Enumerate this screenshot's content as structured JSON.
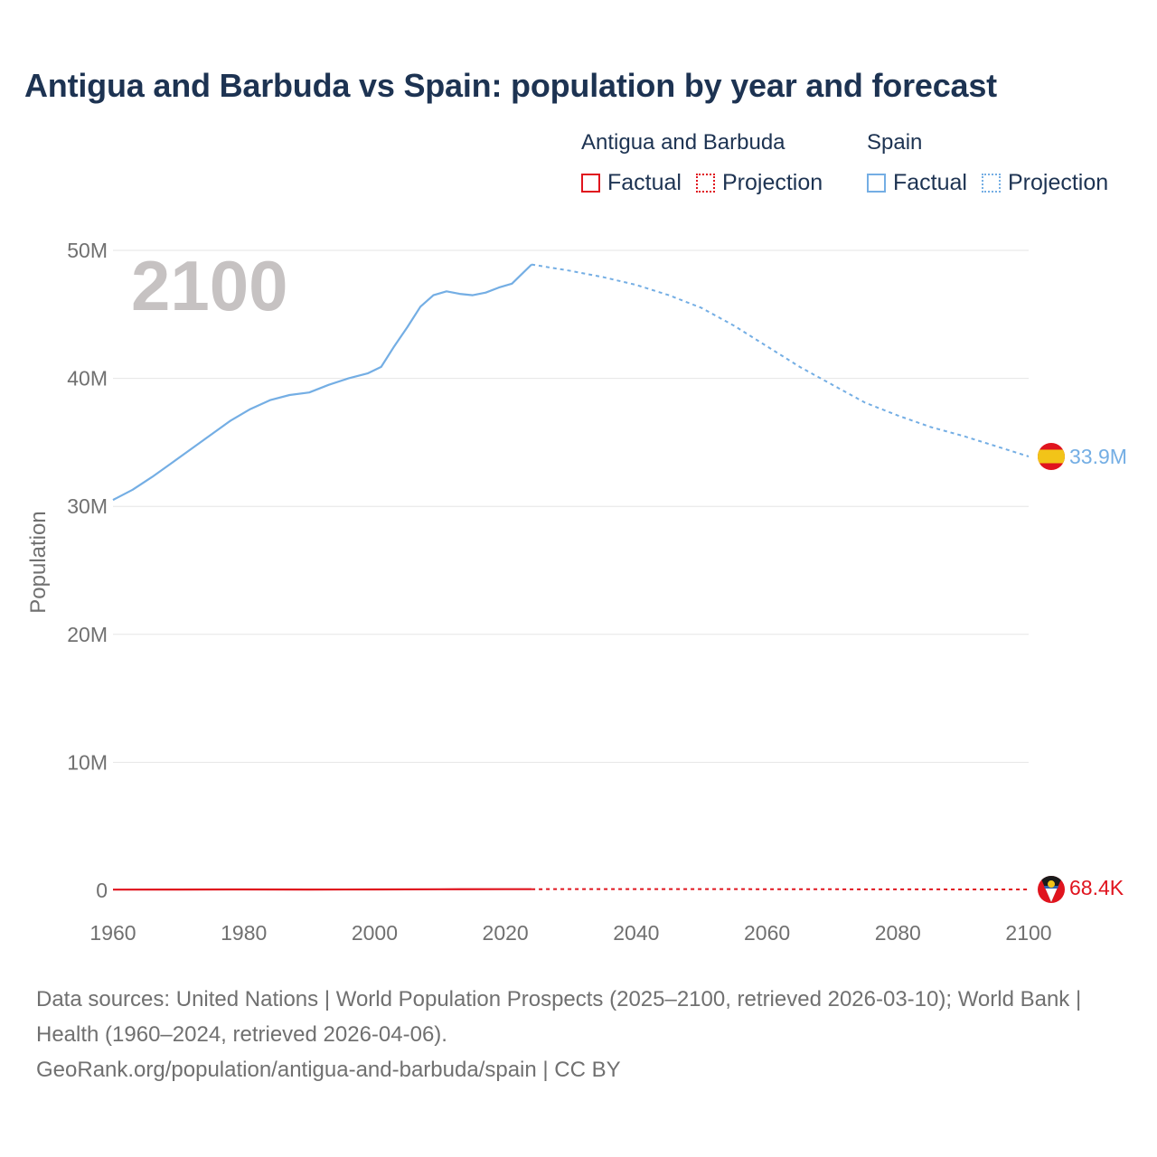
{
  "title": "Antigua and Barbuda vs Spain: population by year and forecast",
  "legend": {
    "groups": [
      {
        "name": "Antigua and Barbuda",
        "color": "#e0141e",
        "factual_label": "Factual",
        "projection_label": "Projection"
      },
      {
        "name": "Spain",
        "color": "#74aee4",
        "factual_label": "Factual",
        "projection_label": "Projection"
      }
    ]
  },
  "year_watermark": "2100",
  "footer": {
    "sources": "Data sources: United Nations | World Population Prospects (2025–2100, retrieved 2026-03-10); World Bank | Health (1960–2024, retrieved 2026-04-06).",
    "credit": "GeoRank.org/population/antigua-and-barbuda/spain | CC BY"
  },
  "chart_data": {
    "type": "line",
    "title": "Antigua and Barbuda vs Spain: population by year and forecast",
    "xlabel": "",
    "ylabel": "Population",
    "xlim": [
      1960,
      2100
    ],
    "ylim": [
      0,
      50000000
    ],
    "grid": true,
    "x_ticks": [
      1960,
      1980,
      2000,
      2020,
      2040,
      2060,
      2080,
      2100
    ],
    "x_tick_labels": [
      "1960",
      "1980",
      "2000",
      "2020",
      "2040",
      "2060",
      "2080",
      "2100"
    ],
    "y_ticks": [
      0,
      10000000,
      20000000,
      30000000,
      40000000,
      50000000
    ],
    "y_tick_labels": [
      "0",
      "10M",
      "20M",
      "30M",
      "40M",
      "50M"
    ],
    "projection_start_year": 2024,
    "series": [
      {
        "name": "Spain",
        "color": "#74aee4",
        "end_label": "33.9M",
        "flag": "spain-flag-icon",
        "factual": {
          "x": [
            1960,
            1963,
            1966,
            1969,
            1972,
            1975,
            1978,
            1981,
            1984,
            1987,
            1990,
            1993,
            1996,
            1999,
            2001,
            2003,
            2005,
            2007,
            2009,
            2011,
            2013,
            2015,
            2017,
            2019,
            2021,
            2024
          ],
          "y": [
            30500000,
            31300000,
            32300000,
            33400000,
            34500000,
            35600000,
            36700000,
            37600000,
            38300000,
            38700000,
            38900000,
            39500000,
            40000000,
            40400000,
            40900000,
            42500000,
            44000000,
            45600000,
            46500000,
            46800000,
            46600000,
            46500000,
            46700000,
            47100000,
            47400000,
            48900000
          ]
        },
        "projection": {
          "x": [
            2024,
            2030,
            2035,
            2040,
            2045,
            2050,
            2055,
            2060,
            2065,
            2070,
            2075,
            2080,
            2085,
            2090,
            2095,
            2100
          ],
          "y": [
            48900000,
            48400000,
            47900000,
            47300000,
            46500000,
            45500000,
            44100000,
            42500000,
            40900000,
            39500000,
            38100000,
            37100000,
            36200000,
            35500000,
            34700000,
            33900000
          ]
        }
      },
      {
        "name": "Antigua and Barbuda",
        "color": "#e0141e",
        "end_label": "68.4K",
        "flag": "antigua-flag-icon",
        "factual": {
          "x": [
            1960,
            1970,
            1980,
            1990,
            2000,
            2010,
            2020,
            2024
          ],
          "y": [
            54000,
            65000,
            68000,
            62000,
            72000,
            85000,
            92000,
            94000
          ]
        },
        "projection": {
          "x": [
            2024,
            2040,
            2060,
            2080,
            2100
          ],
          "y": [
            94000,
            98000,
            92000,
            80000,
            68400
          ]
        }
      }
    ]
  }
}
